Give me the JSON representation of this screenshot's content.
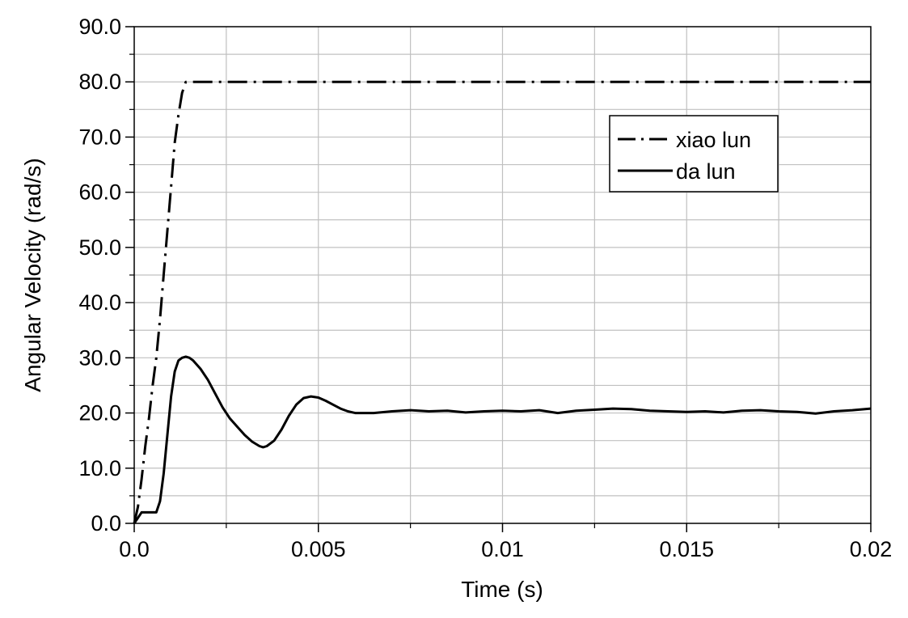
{
  "chart_data": {
    "type": "line",
    "title": "",
    "xlabel": "Time (s)",
    "ylabel": "Angular Velocity (rad/s)",
    "xlim": [
      0,
      0.02
    ],
    "ylim": [
      0,
      90
    ],
    "grid": true,
    "legend_position": "top-right",
    "x_ticks": [
      0,
      0.005,
      0.01,
      0.015,
      0.02
    ],
    "x_tick_labels": [
      "0.0",
      "0.005",
      "0.01",
      "0.015",
      "0.02"
    ],
    "y_ticks": [
      0,
      10,
      20,
      30,
      40,
      50,
      60,
      70,
      80,
      90
    ],
    "y_tick_labels": [
      "0.0",
      "10.0",
      "20.0",
      "30.0",
      "40.0",
      "50.0",
      "60.0",
      "70.0",
      "80.0",
      "90.0"
    ],
    "series": [
      {
        "name": "xiao lun",
        "line_style": "dash-dot",
        "color": "#000000",
        "x": [
          0,
          0.0001,
          0.0002,
          0.0003,
          0.0004,
          0.0005,
          0.0006,
          0.0007,
          0.0008,
          0.0009,
          0.001,
          0.0011,
          0.0012,
          0.0013,
          0.0014,
          0.0015,
          0.002,
          0.005,
          0.01,
          0.015,
          0.02
        ],
        "y": [
          0,
          3,
          8,
          14,
          19,
          25,
          30,
          37,
          45,
          53,
          61,
          69,
          74,
          78,
          80,
          80,
          80,
          80,
          80,
          80,
          80
        ]
      },
      {
        "name": "da lun",
        "line_style": "solid",
        "color": "#000000",
        "x": [
          0,
          0.0001,
          0.0002,
          0.0003,
          0.0004,
          0.0005,
          0.0006,
          0.0007,
          0.0008,
          0.0009,
          0.001,
          0.0011,
          0.0012,
          0.0013,
          0.0014,
          0.0015,
          0.0016,
          0.0018,
          0.002,
          0.0022,
          0.0024,
          0.0026,
          0.0028,
          0.003,
          0.0032,
          0.0034,
          0.0035,
          0.0036,
          0.0038,
          0.004,
          0.0042,
          0.0044,
          0.0046,
          0.0048,
          0.005,
          0.0052,
          0.0054,
          0.0056,
          0.0058,
          0.006,
          0.0065,
          0.007,
          0.0075,
          0.008,
          0.0085,
          0.009,
          0.0095,
          0.01,
          0.0105,
          0.011,
          0.0115,
          0.012,
          0.0125,
          0.013,
          0.0135,
          0.014,
          0.0145,
          0.015,
          0.0155,
          0.016,
          0.0165,
          0.017,
          0.0175,
          0.018,
          0.0185,
          0.019,
          0.0195,
          0.02
        ],
        "y": [
          0,
          1,
          2,
          2,
          2,
          2,
          2,
          4,
          9,
          16,
          23,
          27.5,
          29.5,
          30,
          30.2,
          30,
          29.5,
          28,
          26,
          23.5,
          21,
          19,
          17.5,
          16,
          14.8,
          14,
          13.8,
          14,
          15,
          17,
          19.5,
          21.5,
          22.7,
          23,
          22.8,
          22.2,
          21.5,
          20.8,
          20.3,
          20,
          20,
          20.3,
          20.5,
          20.3,
          20.4,
          20.1,
          20.3,
          20.4,
          20.3,
          20.5,
          20,
          20.4,
          20.6,
          20.8,
          20.7,
          20.4,
          20.3,
          20.2,
          20.3,
          20.1,
          20.4,
          20.5,
          20.3,
          20.2,
          19.9,
          20.3,
          20.5,
          20.8
        ]
      }
    ]
  }
}
